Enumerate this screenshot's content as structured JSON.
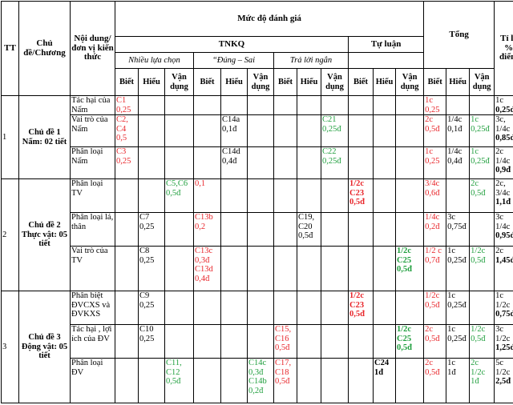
{
  "headers": {
    "tt": "TT",
    "chapter": "Chủ đề/Chương",
    "content": "Nội dung/đơn vị kiến thức",
    "level": "Mức độ đánh giá",
    "total": "Tổng",
    "percent": "Tỉ lệ % điểm",
    "tnkq": "TNKQ",
    "essay": "Tự luận",
    "mcq": "Nhiều lựa chọn",
    "truefalse": "“Đúng – Sai",
    "short": "Trả lời ngắn",
    "biet": "Biết",
    "hieu": "Hiểu",
    "vandung": "Vận dụng"
  },
  "colors": {
    "red": "#e8252a",
    "green": "#1e9e3c"
  },
  "rows": [
    {
      "tt": "1",
      "topic": "Chủ đề 1 Nấm: 02 tiết",
      "rowspan": 3,
      "content": "Tác hại của Nấm",
      "cells": [
        {
          "t": "C1\n0,25",
          "c": "red"
        },
        {
          "t": ""
        },
        {
          "t": ""
        },
        {
          "t": ""
        },
        {
          "t": ""
        },
        {
          "t": ""
        },
        {
          "t": ""
        },
        {
          "t": ""
        },
        {
          "t": ""
        },
        {
          "t": ""
        },
        {
          "t": ""
        },
        {
          "t": ""
        },
        {
          "t": "1c\n0,25",
          "c": "red"
        },
        {
          "t": ""
        },
        {
          "t": ""
        },
        {
          "t": "1c\n0,25đ",
          "b2": true
        }
      ]
    },
    {
      "content": "Vai trò của Nấm",
      "cells": [
        {
          "t": "C2,\nC4\n0,5",
          "c": "red"
        },
        {
          "t": ""
        },
        {
          "t": ""
        },
        {
          "t": ""
        },
        {
          "t": "C14a\n0,1đ"
        },
        {
          "t": ""
        },
        {
          "t": ""
        },
        {
          "t": ""
        },
        {
          "t": "C21\n0,25đ",
          "c": "green"
        },
        {
          "t": ""
        },
        {
          "t": ""
        },
        {
          "t": ""
        },
        {
          "t": "2c\n0,5đ",
          "c": "red"
        },
        {
          "t": "1/4c\n0,1đ"
        },
        {
          "t": "1c\n0,25đ",
          "c": "green"
        },
        {
          "t": "3c,\n1/4c\n0,85đ",
          "b2": true
        }
      ]
    },
    {
      "content": "Phân loại Nấm",
      "cells": [
        {
          "t": "C3\n0,25",
          "c": "red"
        },
        {
          "t": ""
        },
        {
          "t": ""
        },
        {
          "t": ""
        },
        {
          "t": "C14d\n0,4đ"
        },
        {
          "t": ""
        },
        {
          "t": ""
        },
        {
          "t": ""
        },
        {
          "t": "C22\n0,25đ",
          "c": "green"
        },
        {
          "t": ""
        },
        {
          "t": ""
        },
        {
          "t": ""
        },
        {
          "t": "1c\n0,25",
          "c": "red"
        },
        {
          "t": "1/4c\n0,4đ"
        },
        {
          "t": "1c\n0,25đ",
          "c": "green"
        },
        {
          "t": "2c\n1/4c\n0,9đ",
          "b2": true
        }
      ]
    },
    {
      "tt": "2",
      "topic": "Chủ đề 2 Thực vật: 05 tiết",
      "rowspan": 3,
      "content": "Phân loại TV",
      "cells": [
        {
          "t": ""
        },
        {
          "t": ""
        },
        {
          "t": "C5,C6\n0,5đ",
          "c": "green"
        },
        {
          "t": "0,1",
          "c": "red"
        },
        {
          "t": ""
        },
        {
          "t": ""
        },
        {
          "t": ""
        },
        {
          "t": ""
        },
        {
          "t": ""
        },
        {
          "t": "1/2c\nC23\n0,5đ",
          "c": "red",
          "b": true
        },
        {
          "t": ""
        },
        {
          "t": ""
        },
        {
          "t": "3/4c\n0,6đ",
          "c": "red"
        },
        {
          "t": ""
        },
        {
          "t": "2c\n0,5đ",
          "c": "green"
        },
        {
          "t": "2c,\n3/4c\n1,1đ",
          "b3": true
        }
      ]
    },
    {
      "content": "Phân loại lá, thân",
      "cells": [
        {
          "t": ""
        },
        {
          "t": "C7\n0,25"
        },
        {
          "t": ""
        },
        {
          "t": "C13b\n0,2",
          "c": "red"
        },
        {
          "t": ""
        },
        {
          "t": ""
        },
        {
          "t": ""
        },
        {
          "t": "C19,\nC20\n0,5đ"
        },
        {
          "t": ""
        },
        {
          "t": ""
        },
        {
          "t": ""
        },
        {
          "t": ""
        },
        {
          "t": "1/4c\n0,2đ",
          "c": "red"
        },
        {
          "t": "3c\n0,75đ"
        },
        {
          "t": ""
        },
        {
          "t": "3c\n1/4c\n0,95đ",
          "b3": true
        }
      ]
    },
    {
      "content": "Vai trò của TV",
      "cells": [
        {
          "t": ""
        },
        {
          "t": "C8\n0,25"
        },
        {
          "t": ""
        },
        {
          "t": "C13c\n0,3đ\nC13d\n0,4đ",
          "c": "red"
        },
        {
          "t": ""
        },
        {
          "t": ""
        },
        {
          "t": ""
        },
        {
          "t": ""
        },
        {
          "t": ""
        },
        {
          "t": ""
        },
        {
          "t": ""
        },
        {
          "t": "1/2c\nC25\n0,5đ",
          "c": "green",
          "b": true
        },
        {
          "t": "1/2 c\n0,7đ",
          "c": "red"
        },
        {
          "t": "1c\n0,25đ"
        },
        {
          "t": "1/2c\n0,5đ",
          "c": "green"
        },
        {
          "t": "2c\n1,45đ",
          "b2": true
        }
      ]
    },
    {
      "tt": "3",
      "topic": "Chủ đề 3 Động vật: 05 tiết",
      "rowspan": 3,
      "content": "Phân biệt ĐVCXS và ĐVKXS",
      "cells": [
        {
          "t": ""
        },
        {
          "t": "C9\n0,25"
        },
        {
          "t": ""
        },
        {
          "t": ""
        },
        {
          "t": ""
        },
        {
          "t": ""
        },
        {
          "t": ""
        },
        {
          "t": ""
        },
        {
          "t": ""
        },
        {
          "t": "1/2c\nC23\n0,5đ",
          "c": "red",
          "b": true
        },
        {
          "t": ""
        },
        {
          "t": ""
        },
        {
          "t": "1/2c\n0,5đ",
          "c": "red"
        },
        {
          "t": "1c\n0,25đ"
        },
        {
          "t": ""
        },
        {
          "t": "1c\n1/2c\n0,75đ",
          "b3": true
        }
      ]
    },
    {
      "content": "Tác hại , lợi ích của ĐV",
      "cells": [
        {
          "t": ""
        },
        {
          "t": "C10\n0,25"
        },
        {
          "t": ""
        },
        {
          "t": ""
        },
        {
          "t": ""
        },
        {
          "t": ""
        },
        {
          "t": "C15,\nC16\n0,5đ",
          "c": "red"
        },
        {
          "t": ""
        },
        {
          "t": ""
        },
        {
          "t": ""
        },
        {
          "t": ""
        },
        {
          "t": "1/2c\nC25\n0,5đ",
          "c": "green",
          "b": true
        },
        {
          "t": "2c\n0,5đ",
          "c": "red"
        },
        {
          "t": "1c\n0,25đ"
        },
        {
          "t": "1/2c\n0,5đ",
          "c": "green"
        },
        {
          "t": "3c\n1/2c\n1,25đ",
          "b3": true
        }
      ]
    },
    {
      "content": "Phân loại ĐV",
      "cells": [
        {
          "t": ""
        },
        {
          "t": ""
        },
        {
          "t": "C11,\nC12\n0,5đ",
          "c": "green"
        },
        {
          "t": ""
        },
        {
          "t": ""
        },
        {
          "t": "C14c\n0,3đ\nC14b\n0,2đ",
          "c": "green"
        },
        {
          "t": "C17,\nC18\n0,5đ",
          "c": "red"
        },
        {
          "t": ""
        },
        {
          "t": ""
        },
        {
          "t": ""
        },
        {
          "t": "C24\n1đ",
          "b": true
        },
        {
          "t": ""
        },
        {
          "t": "2c\n0,5đ",
          "c": "red"
        },
        {
          "t": "1c\n1đ"
        },
        {
          "t": "2c\n1/2c\n1đ",
          "c": "green"
        },
        {
          "t": "5c\n1/2c\n2,5đ",
          "b3": true
        }
      ]
    }
  ]
}
